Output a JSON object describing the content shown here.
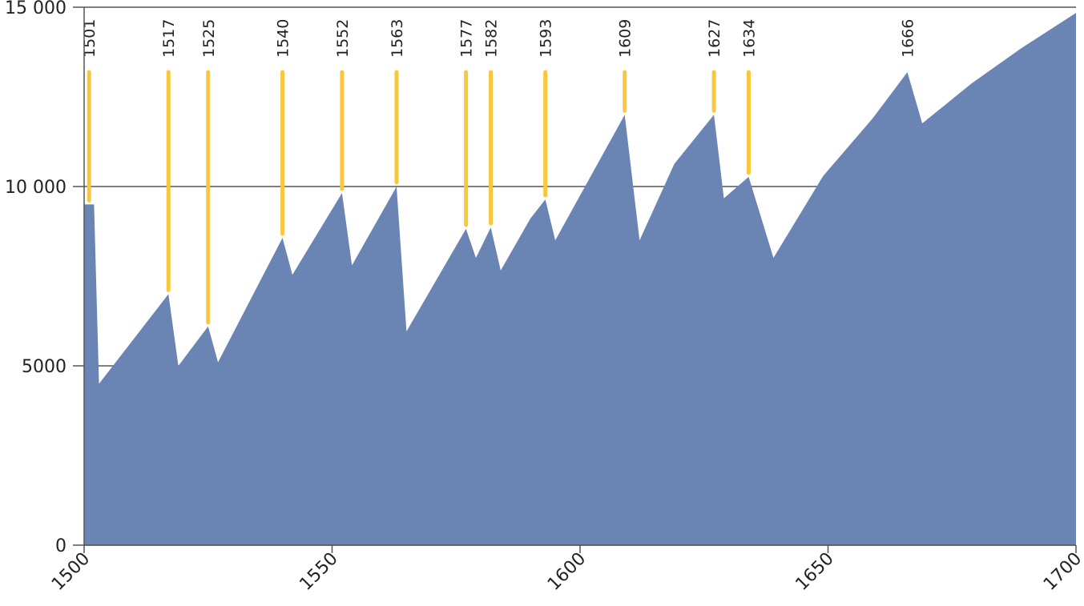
{
  "chart_data": {
    "type": "area",
    "xlim": [
      1500,
      1700
    ],
    "ylim": [
      0,
      15000
    ],
    "grid": "horizontal",
    "x_ticks": [
      1500,
      1550,
      1600,
      1650,
      1700
    ],
    "x_tick_labels": [
      "1500",
      "1550",
      "1600",
      "1650",
      "1700"
    ],
    "y_ticks": [
      0,
      5000,
      10000,
      15000
    ],
    "y_tick_labels": [
      "0",
      "5000",
      "10 000",
      "15 000"
    ],
    "colors": {
      "area": "#6a84b4",
      "marker": "#f8c73e",
      "axis": "#555555"
    },
    "series": [
      {
        "x": [
          1500,
          1502,
          1503,
          1517,
          1519,
          1525,
          1527,
          1540,
          1542,
          1552,
          1554,
          1563,
          1565,
          1577,
          1579,
          1582,
          1584,
          1590,
          1593,
          1595,
          1609,
          1612,
          1619,
          1627,
          1629,
          1634,
          1639,
          1649,
          1659,
          1666,
          1669,
          1679,
          1689,
          1700
        ],
        "y": [
          9500,
          9500,
          4500,
          7000,
          5000,
          6100,
          5100,
          8570,
          7540,
          9820,
          7800,
          10000,
          5960,
          8820,
          8010,
          8860,
          7660,
          9110,
          9640,
          8500,
          12000,
          8500,
          10630,
          12000,
          9670,
          10270,
          8010,
          10290,
          11900,
          13190,
          11760,
          12880,
          13860,
          14840
        ]
      }
    ],
    "markers": [
      {
        "year": 1501,
        "label": "1501",
        "value": 9500
      },
      {
        "year": 1517,
        "label": "1517",
        "value": 7000
      },
      {
        "year": 1525,
        "label": "1525",
        "value": 6100
      },
      {
        "year": 1540,
        "label": "1540",
        "value": 8570
      },
      {
        "year": 1552,
        "label": "1552",
        "value": 9820
      },
      {
        "year": 1563,
        "label": "1563",
        "value": 10000
      },
      {
        "year": 1577,
        "label": "1577",
        "value": 8820
      },
      {
        "year": 1582,
        "label": "1582",
        "value": 8860
      },
      {
        "year": 1593,
        "label": "1593",
        "value": 9640
      },
      {
        "year": 1609,
        "label": "1609",
        "value": 12000
      },
      {
        "year": 1627,
        "label": "1627",
        "value": 12000
      },
      {
        "year": 1634,
        "label": "1634",
        "value": 10270
      },
      {
        "year": 1666,
        "label": "1666",
        "value": 13190
      }
    ]
  }
}
